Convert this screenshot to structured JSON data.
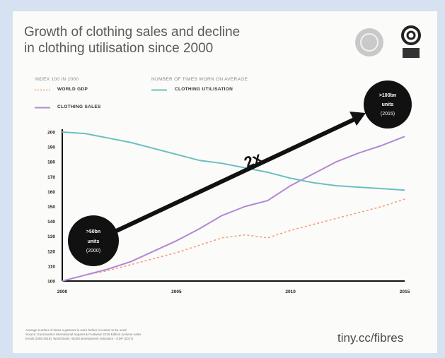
{
  "header": {
    "title_line1": "Growth of clothing sales and decline",
    "title_line2": "in clothing utilisation since 2000"
  },
  "legend": {
    "left_heading": "INDEX 100 IN 2000",
    "right_heading": "NUMBER OF TIMES WORN ON AVERAGE",
    "items": [
      {
        "label": "WORLD GDP",
        "color": "#f2a07a"
      },
      {
        "label": "CLOTHING SALES",
        "color": "#b387d4"
      },
      {
        "label": "CLOTHING UTILISATION",
        "color": "#6bbfc0"
      }
    ]
  },
  "annotations": {
    "start_line1": ">50bn",
    "start_line2": "units",
    "start_line3": "(2000)",
    "end_line1": ">100bn",
    "end_line2": "units",
    "end_line3": "(2015)",
    "multiplier": "2x"
  },
  "footer": {
    "footnote_line1": "Average number of times a garment is worn before it ceases to be used",
    "footnote_line2": "Source: Euromonitor International Apparel & Footwear 2016 Edition (volume sales",
    "footnote_line3": "trends 2005-2015); World Bank, World development indicators - GDP (2017)",
    "link": "tiny.cc/fibres"
  },
  "colors": {
    "gdp": "#f2a07a",
    "sales": "#b387d4",
    "utilisation": "#6bbfc0",
    "arrow": "#111111",
    "background": "#d6e2f1",
    "card": "#fbfbf9"
  },
  "chart_data": {
    "type": "line",
    "title": "Growth of clothing sales and decline in clothing utilisation since 2000",
    "xlabel": "",
    "ylabel": "",
    "x": [
      2000,
      2001,
      2002,
      2003,
      2004,
      2005,
      2006,
      2007,
      2008,
      2009,
      2010,
      2011,
      2012,
      2013,
      2014,
      2015
    ],
    "xticks": [
      2000,
      2005,
      2010,
      2015
    ],
    "xtick_labels": [
      "2000",
      "2005",
      "2010",
      "2015"
    ],
    "ylim": [
      100,
      200
    ],
    "yticks": [
      100,
      110,
      120,
      130,
      140,
      150,
      160,
      170,
      180,
      190,
      200
    ],
    "ytick_labels": [
      "100",
      "110",
      "120",
      "130",
      "140",
      "150",
      "160",
      "170",
      "180",
      "190",
      "200"
    ],
    "series": [
      {
        "name": "WORLD GDP",
        "style": "dashed",
        "values": [
          100,
          104,
          107,
          111,
          115,
          119,
          124,
          129,
          131,
          129,
          134,
          138,
          142,
          146,
          150,
          155
        ]
      },
      {
        "name": "CLOTHING SALES",
        "style": "solid",
        "values": [
          100,
          104,
          108,
          113,
          120,
          127,
          135,
          144,
          150,
          154,
          164,
          172,
          180,
          186,
          191,
          197
        ]
      },
      {
        "name": "CLOTHING UTILISATION",
        "style": "solid",
        "values": [
          200,
          199,
          196,
          193,
          189,
          185,
          181,
          179,
          176,
          173,
          169,
          166,
          164,
          163,
          162,
          161
        ]
      }
    ],
    "grid": false,
    "legend_position": "top"
  }
}
